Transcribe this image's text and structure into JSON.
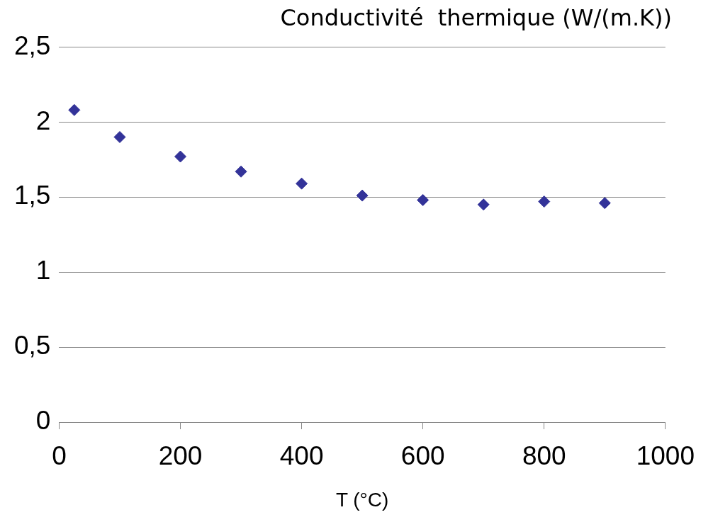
{
  "chart_data": {
    "type": "scatter",
    "title": "Conductivité  thermique (W/(m.K))",
    "xlabel": "T (°C)",
    "x": [
      25,
      100,
      200,
      300,
      400,
      500,
      600,
      700,
      800,
      900
    ],
    "series": [
      {
        "color": "#333399",
        "values": [
          2.08,
          1.9,
          1.77,
          1.67,
          1.59,
          1.51,
          1.48,
          1.45,
          1.47,
          1.46
        ]
      }
    ],
    "xlim": [
      0,
      1000
    ],
    "xticks": [
      0,
      200,
      400,
      600,
      800,
      1000
    ],
    "ylim": [
      0,
      2.5
    ],
    "yticks": [
      0,
      {
        "value": 0.5,
        "label": "0,5"
      },
      1,
      {
        "value": 1.5,
        "label": "1,5"
      },
      2,
      {
        "value": 2.5,
        "label": "2,5"
      }
    ],
    "grid": "y",
    "marker": "diamond",
    "legend": false
  }
}
